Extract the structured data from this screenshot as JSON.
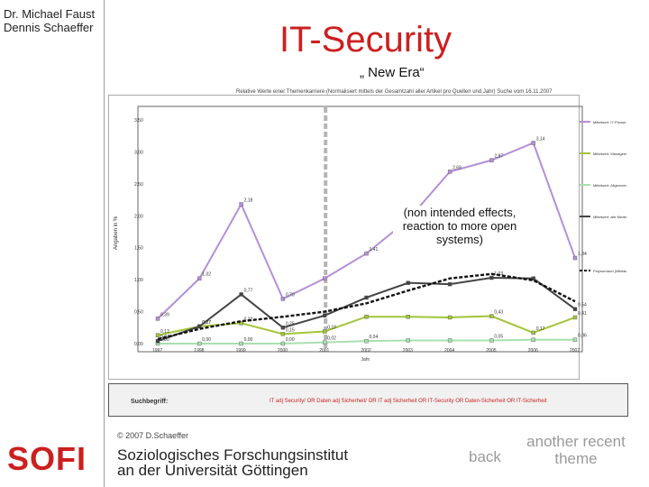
{
  "sidebar": {
    "author_1": "Dr. Michael Faust",
    "author_2": "Dennis Schaeffer",
    "logo_text": "SOFI"
  },
  "slide": {
    "title": "IT-Security",
    "subtitle": "„ New Era“",
    "annotation": "(non intended effects, reaction to more open systems)",
    "copyright": "© 2007 D.Schaeffer",
    "institute_line1": "Soziologisches Forschungsinstitut",
    "institute_line2": "an der Universität Göttingen",
    "back_label": "back",
    "another_label": "another recent theme"
  },
  "search_term": {
    "label": "Suchbegriff:",
    "query": "IT adj Security/ OR Daten adj Sicherheit/ OR IT adj Sicherheit OR IT-Security OR Daten-Sicherheit OR IT-Sicherheit"
  },
  "chart_data": {
    "type": "line",
    "title": "Relative Werte einer Themenkarriere (Normalisiert mittels der Gesamtzahl aller Artikel pro Quellen und Jahr) Suche vom 16.11.2007",
    "xlabel": "Jahr",
    "ylabel": "Angaben in %",
    "categories": [
      "1997",
      "1998",
      "1999",
      "2000",
      "2001",
      "2002",
      "2003",
      "2004",
      "2005",
      "2006",
      "2007"
    ],
    "ylim": [
      0,
      3.5
    ],
    "yticks": [
      "0,00",
      "0,50",
      "1,00",
      "1,50",
      "2,00",
      "2,50",
      "3,00",
      "3,50"
    ],
    "grid": false,
    "legend_position": "right",
    "series": [
      {
        "name": "Mittelwert: IT-Presse",
        "color": "#b58fd8",
        "values": [
          0.39,
          1.02,
          2.18,
          0.7,
          1.02,
          1.41,
          1.94,
          2.69,
          2.87,
          3.14,
          1.34
        ],
        "labels": [
          "0,39",
          "1,02",
          "2,18",
          "0,70",
          "",
          "1,41",
          "1,94",
          "2,69",
          "2,87",
          "3,14",
          "1,34"
        ]
      },
      {
        "name": "Mittelwert: Management-Presse",
        "color": "#a3c43a",
        "values": [
          0.13,
          0.27,
          0.32,
          0.15,
          0.19,
          0.42,
          0.42,
          0.41,
          0.43,
          0.17,
          0.41
        ],
        "labels": [
          "0,13",
          "0,27",
          "0,32",
          "0,15",
          "0,19",
          "",
          "",
          "",
          "0,43",
          "0,17",
          "0,41"
        ]
      },
      {
        "name": "Mittelwert: Allgemeine Tages- und Wochenpresse",
        "color": "#a8e0b0",
        "values": [
          0.0,
          0.0,
          0.0,
          0.0,
          0.02,
          0.04,
          0.05,
          0.05,
          0.05,
          0.06,
          0.06
        ],
        "labels": [
          "0,00",
          "0,00",
          "0,00",
          "0,00",
          "0,02",
          "0,04",
          "",
          "",
          "0,05",
          "",
          "0,06"
        ]
      },
      {
        "name": "Mittelwert: alle Medien",
        "color": "#444444",
        "values": [
          0.04,
          0.27,
          0.77,
          0.25,
          0.44,
          0.72,
          0.95,
          0.93,
          1.03,
          1.02,
          0.54
        ],
        "labels": [
          "0,04",
          "0,27",
          "0,77",
          "0,25",
          "",
          "",
          "",
          "",
          "1,03",
          "",
          "0,54"
        ]
      },
      {
        "name": "Polynomisch (Mittelwert: alle Medien)",
        "color": "#111111",
        "dashed": true,
        "values": [
          0.07,
          0.23,
          0.35,
          0.42,
          0.5,
          0.63,
          0.83,
          1.02,
          1.09,
          0.99,
          0.66
        ],
        "labels": []
      }
    ]
  }
}
